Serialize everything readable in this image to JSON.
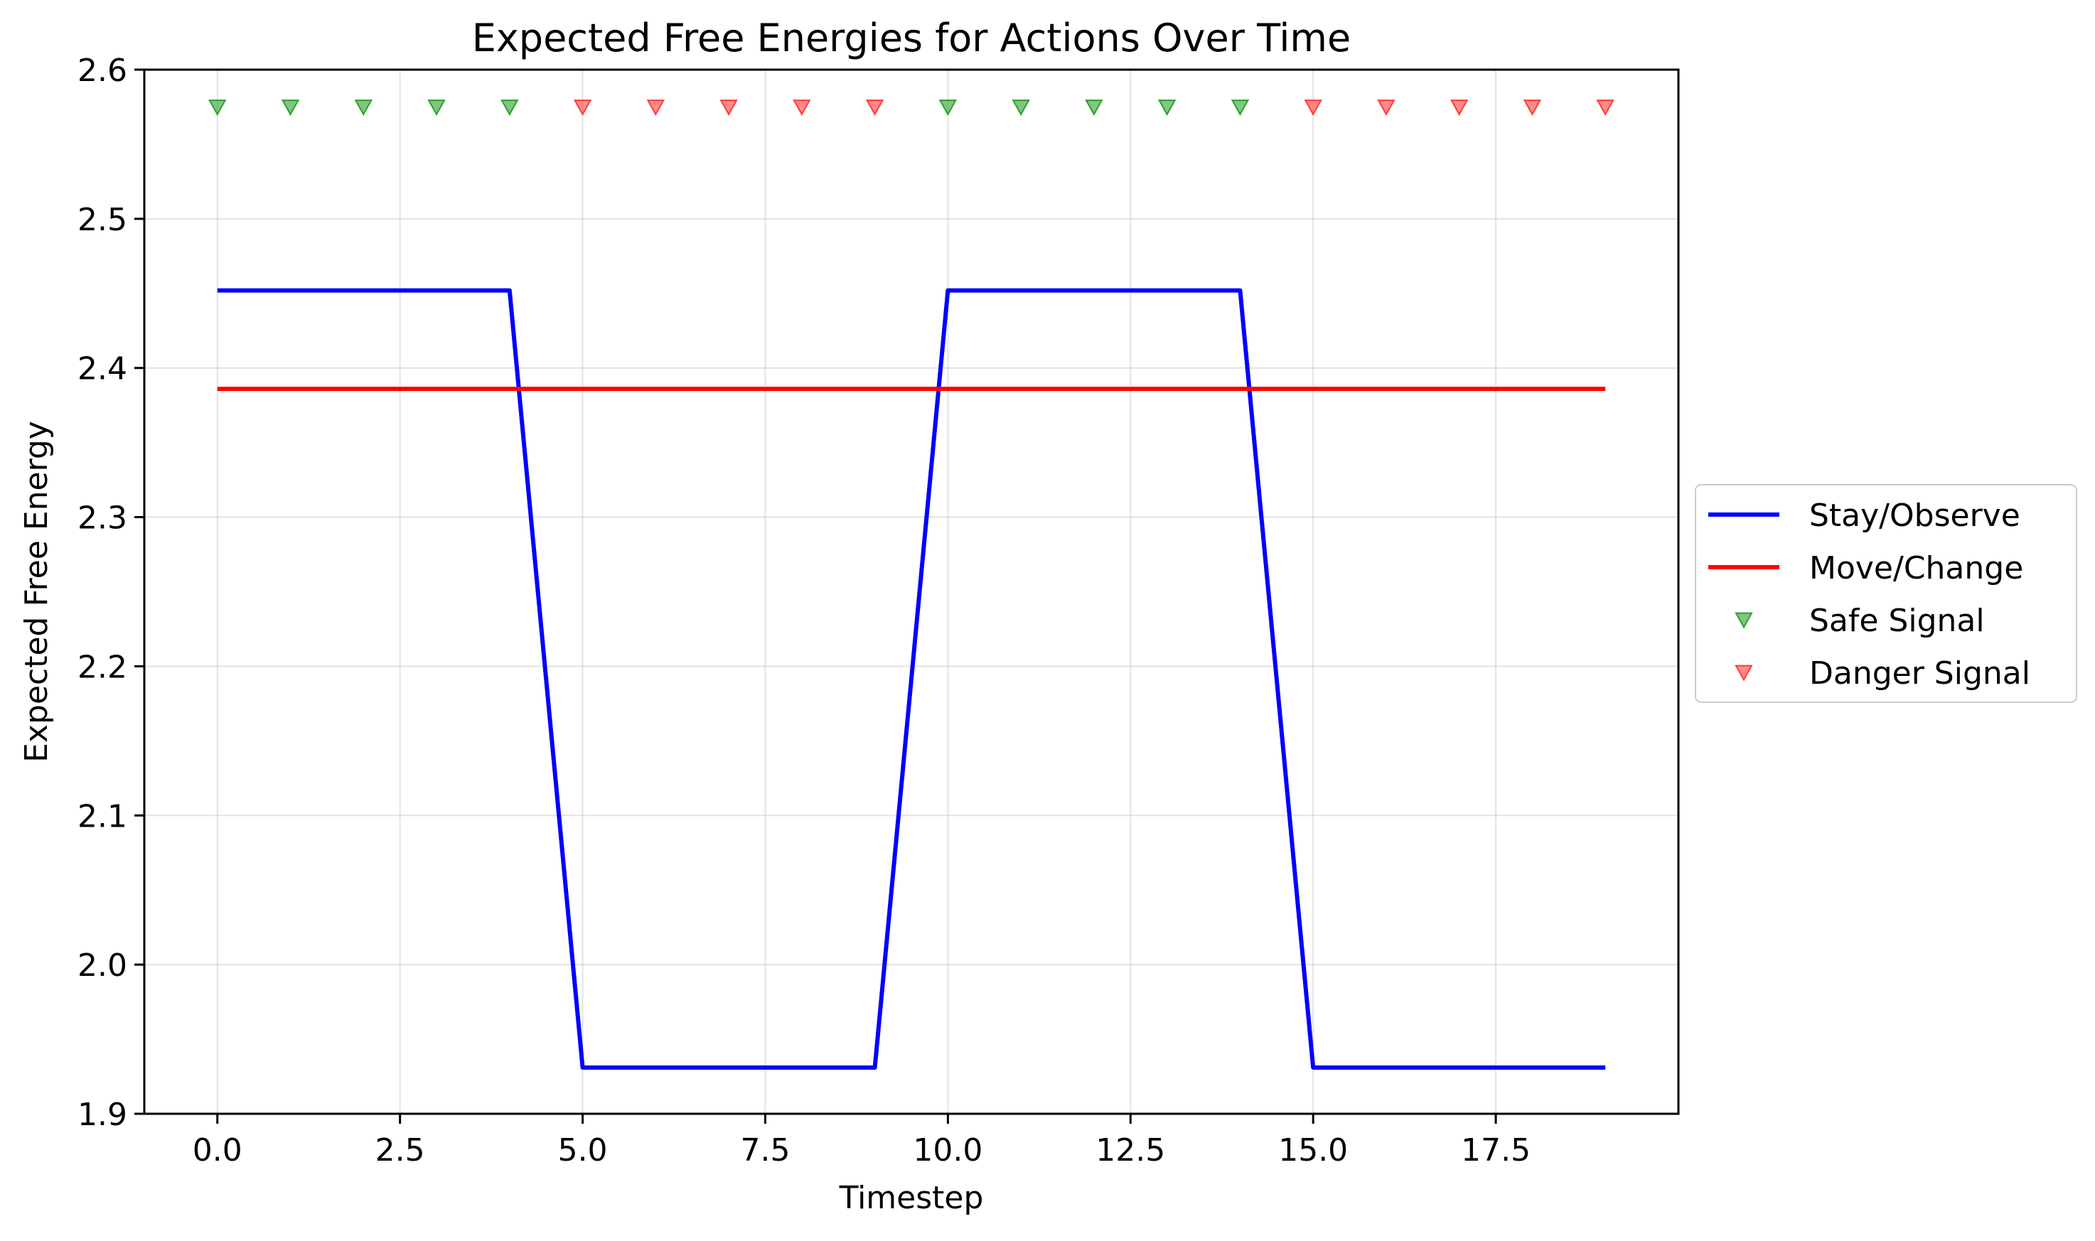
{
  "chart_data": {
    "type": "line",
    "title": "Expected Free Energies for Actions Over Time",
    "xlabel": "Timestep",
    "ylabel": "Expected Free Energy",
    "xlim": [
      -1.0,
      20.0
    ],
    "ylim": [
      1.9,
      2.6
    ],
    "xticks": [
      0.0,
      2.5,
      5.0,
      7.5,
      10.0,
      12.5,
      15.0,
      17.5
    ],
    "xtick_labels": [
      "0.0",
      "2.5",
      "5.0",
      "7.5",
      "10.0",
      "12.5",
      "15.0",
      "17.5"
    ],
    "yticks": [
      1.9,
      2.0,
      2.1,
      2.2,
      2.3,
      2.4,
      2.5,
      2.6
    ],
    "ytick_labels": [
      "1.9",
      "2.0",
      "2.1",
      "2.2",
      "2.3",
      "2.4",
      "2.5",
      "2.6"
    ],
    "grid": true,
    "legend_position": "outside right",
    "x": [
      0,
      1,
      2,
      3,
      4,
      5,
      6,
      7,
      8,
      9,
      10,
      11,
      12,
      13,
      14,
      15,
      16,
      17,
      18,
      19
    ],
    "series": [
      {
        "name": "Stay/Observe",
        "kind": "line",
        "color": "#0000ff",
        "values": [
          2.452,
          2.452,
          2.452,
          2.452,
          2.452,
          1.931,
          1.931,
          1.931,
          1.931,
          1.931,
          2.452,
          2.452,
          2.452,
          2.452,
          2.452,
          1.931,
          1.931,
          1.931,
          1.931,
          1.931
        ]
      },
      {
        "name": "Move/Change",
        "kind": "line",
        "color": "#ff0000",
        "values": [
          2.386,
          2.386,
          2.386,
          2.386,
          2.386,
          2.386,
          2.386,
          2.386,
          2.386,
          2.386,
          2.386,
          2.386,
          2.386,
          2.386,
          2.386,
          2.386,
          2.386,
          2.386,
          2.386,
          2.386
        ]
      },
      {
        "name": "Safe Signal",
        "kind": "scatter",
        "marker": "triangle-down",
        "color": "#2ca02c",
        "x": [
          0,
          1,
          2,
          3,
          4,
          10,
          11,
          12,
          13,
          14
        ],
        "values": [
          2.575,
          2.575,
          2.575,
          2.575,
          2.575,
          2.575,
          2.575,
          2.575,
          2.575,
          2.575
        ]
      },
      {
        "name": "Danger Signal",
        "kind": "scatter",
        "marker": "triangle-down",
        "color": "#ff3b3b",
        "x": [
          5,
          6,
          7,
          8,
          9,
          15,
          16,
          17,
          18,
          19
        ],
        "values": [
          2.575,
          2.575,
          2.575,
          2.575,
          2.575,
          2.575,
          2.575,
          2.575,
          2.575,
          2.575
        ]
      }
    ]
  }
}
